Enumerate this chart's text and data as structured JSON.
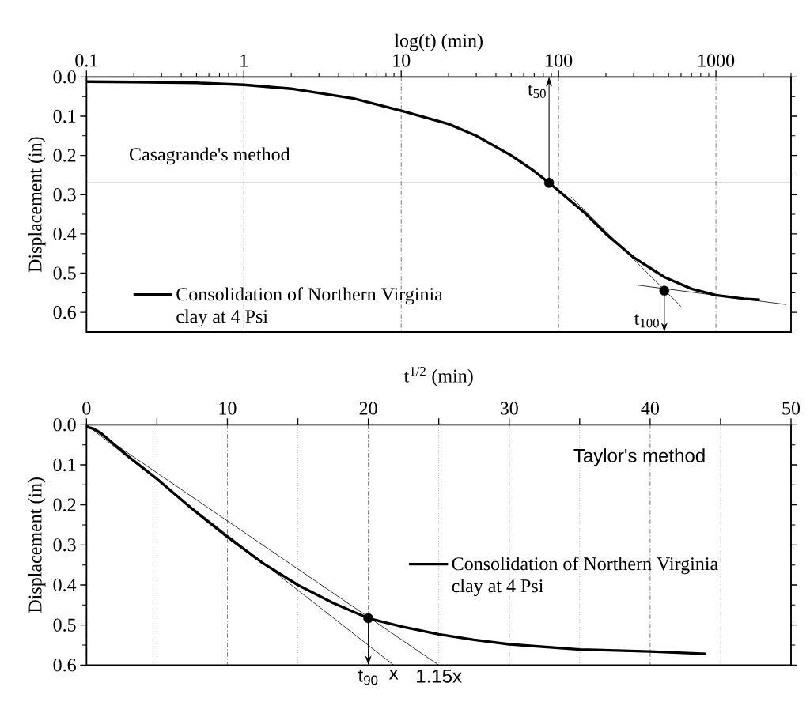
{
  "chart_data": [
    {
      "type": "line",
      "xlabel": "log(t) (min)",
      "ylabel": "Displacement (in)",
      "log": "x",
      "xlim": [
        0.1,
        3000
      ],
      "ylim": [
        0.65,
        0
      ],
      "xticks": [
        0.1,
        1,
        10,
        100,
        1000
      ],
      "yticks": [
        {
          "value": 0,
          "label": "0.0"
        },
        0.1,
        0.2,
        0.3,
        0.4,
        0.5,
        0.6
      ],
      "grid": "x",
      "legend": "bottom left",
      "series": [
        {
          "name": "Consolidation of Northern Virginia clay at 4 Psi",
          "color": "#000000",
          "x": [
            0.1,
            0.2,
            0.5,
            1,
            2,
            5,
            10,
            20,
            30,
            50,
            70,
            87,
            100,
            150,
            200,
            300,
            470,
            700,
            1000,
            1500,
            1900
          ],
          "values": [
            0.012,
            0.013,
            0.015,
            0.02,
            0.03,
            0.055,
            0.086,
            0.12,
            0.15,
            0.2,
            0.24,
            0.27,
            0.29,
            0.35,
            0.4,
            0.46,
            0.51,
            0.54,
            0.556,
            0.565,
            0.568
          ]
        },
        {
          "type": "line",
          "color": "#000000",
          "x": [
            120,
            600
          ],
          "values": [
            0.305,
            0.585
          ]
        },
        {
          "type": "line",
          "color": "#000000",
          "x": [
            310,
            2800
          ],
          "values": [
            0.53,
            0.58
          ]
        },
        {
          "type": "scatter",
          "marker": "circle",
          "color": "#000000",
          "x": [
            87,
            470
          ],
          "values": [
            0.27,
            0.545
          ]
        }
      ],
      "ref_lines": [
        {
          "axis": "y",
          "value": 0.27,
          "color": "#000000"
        }
      ],
      "annotations": [
        "Casagrande's method",
        "t$_{50}$",
        "t$_{100}$"
      ]
    },
    {
      "type": "line",
      "xlabel": "t$^{1/2}$ (min)",
      "ylabel": "Displacement (in)",
      "xlim": [
        0,
        50
      ],
      "ylim": [
        0.6,
        0
      ],
      "xticks": [
        0,
        {
          "value": 5,
          "label": null
        },
        10,
        {
          "value": 15,
          "label": null
        },
        20,
        {
          "value": 25,
          "label": null
        },
        30,
        {
          "value": 35,
          "label": null
        },
        40,
        {
          "value": 45,
          "label": null
        },
        50
      ],
      "yticks": [
        {
          "value": 0,
          "label": "0.0"
        },
        0.1,
        0.2,
        0.3,
        0.4,
        0.5,
        0.6
      ],
      "grid": "x",
      "legend": "right",
      "series": [
        {
          "name": "Consolidation of Northern Virginia clay at 4 Psi",
          "color": "#000000",
          "x": [
            0,
            0.5,
            1,
            2,
            3,
            5,
            7.5,
            10,
            12.5,
            15,
            17.5,
            20,
            22.5,
            25,
            27.5,
            30,
            35,
            40,
            44
          ],
          "values": [
            0.005,
            0.01,
            0.02,
            0.05,
            0.08,
            0.135,
            0.21,
            0.28,
            0.345,
            0.4,
            0.445,
            0.483,
            0.505,
            0.523,
            0.537,
            0.548,
            0.561,
            0.566,
            0.572
          ]
        },
        {
          "type": "line",
          "color": "#000000",
          "x": [
            0,
            21.8
          ],
          "values": [
            0,
            0.6
          ]
        },
        {
          "type": "line",
          "color": "#000000",
          "x": [
            0,
            25
          ],
          "values": [
            0,
            0.6
          ]
        },
        {
          "type": "scatter",
          "marker": "circle",
          "color": "#000000",
          "x": [
            20
          ],
          "values": [
            0.483
          ]
        }
      ],
      "annotations": [
        "Taylor's method",
        "t$_{90}$",
        "x",
        "1.15x"
      ]
    }
  ]
}
